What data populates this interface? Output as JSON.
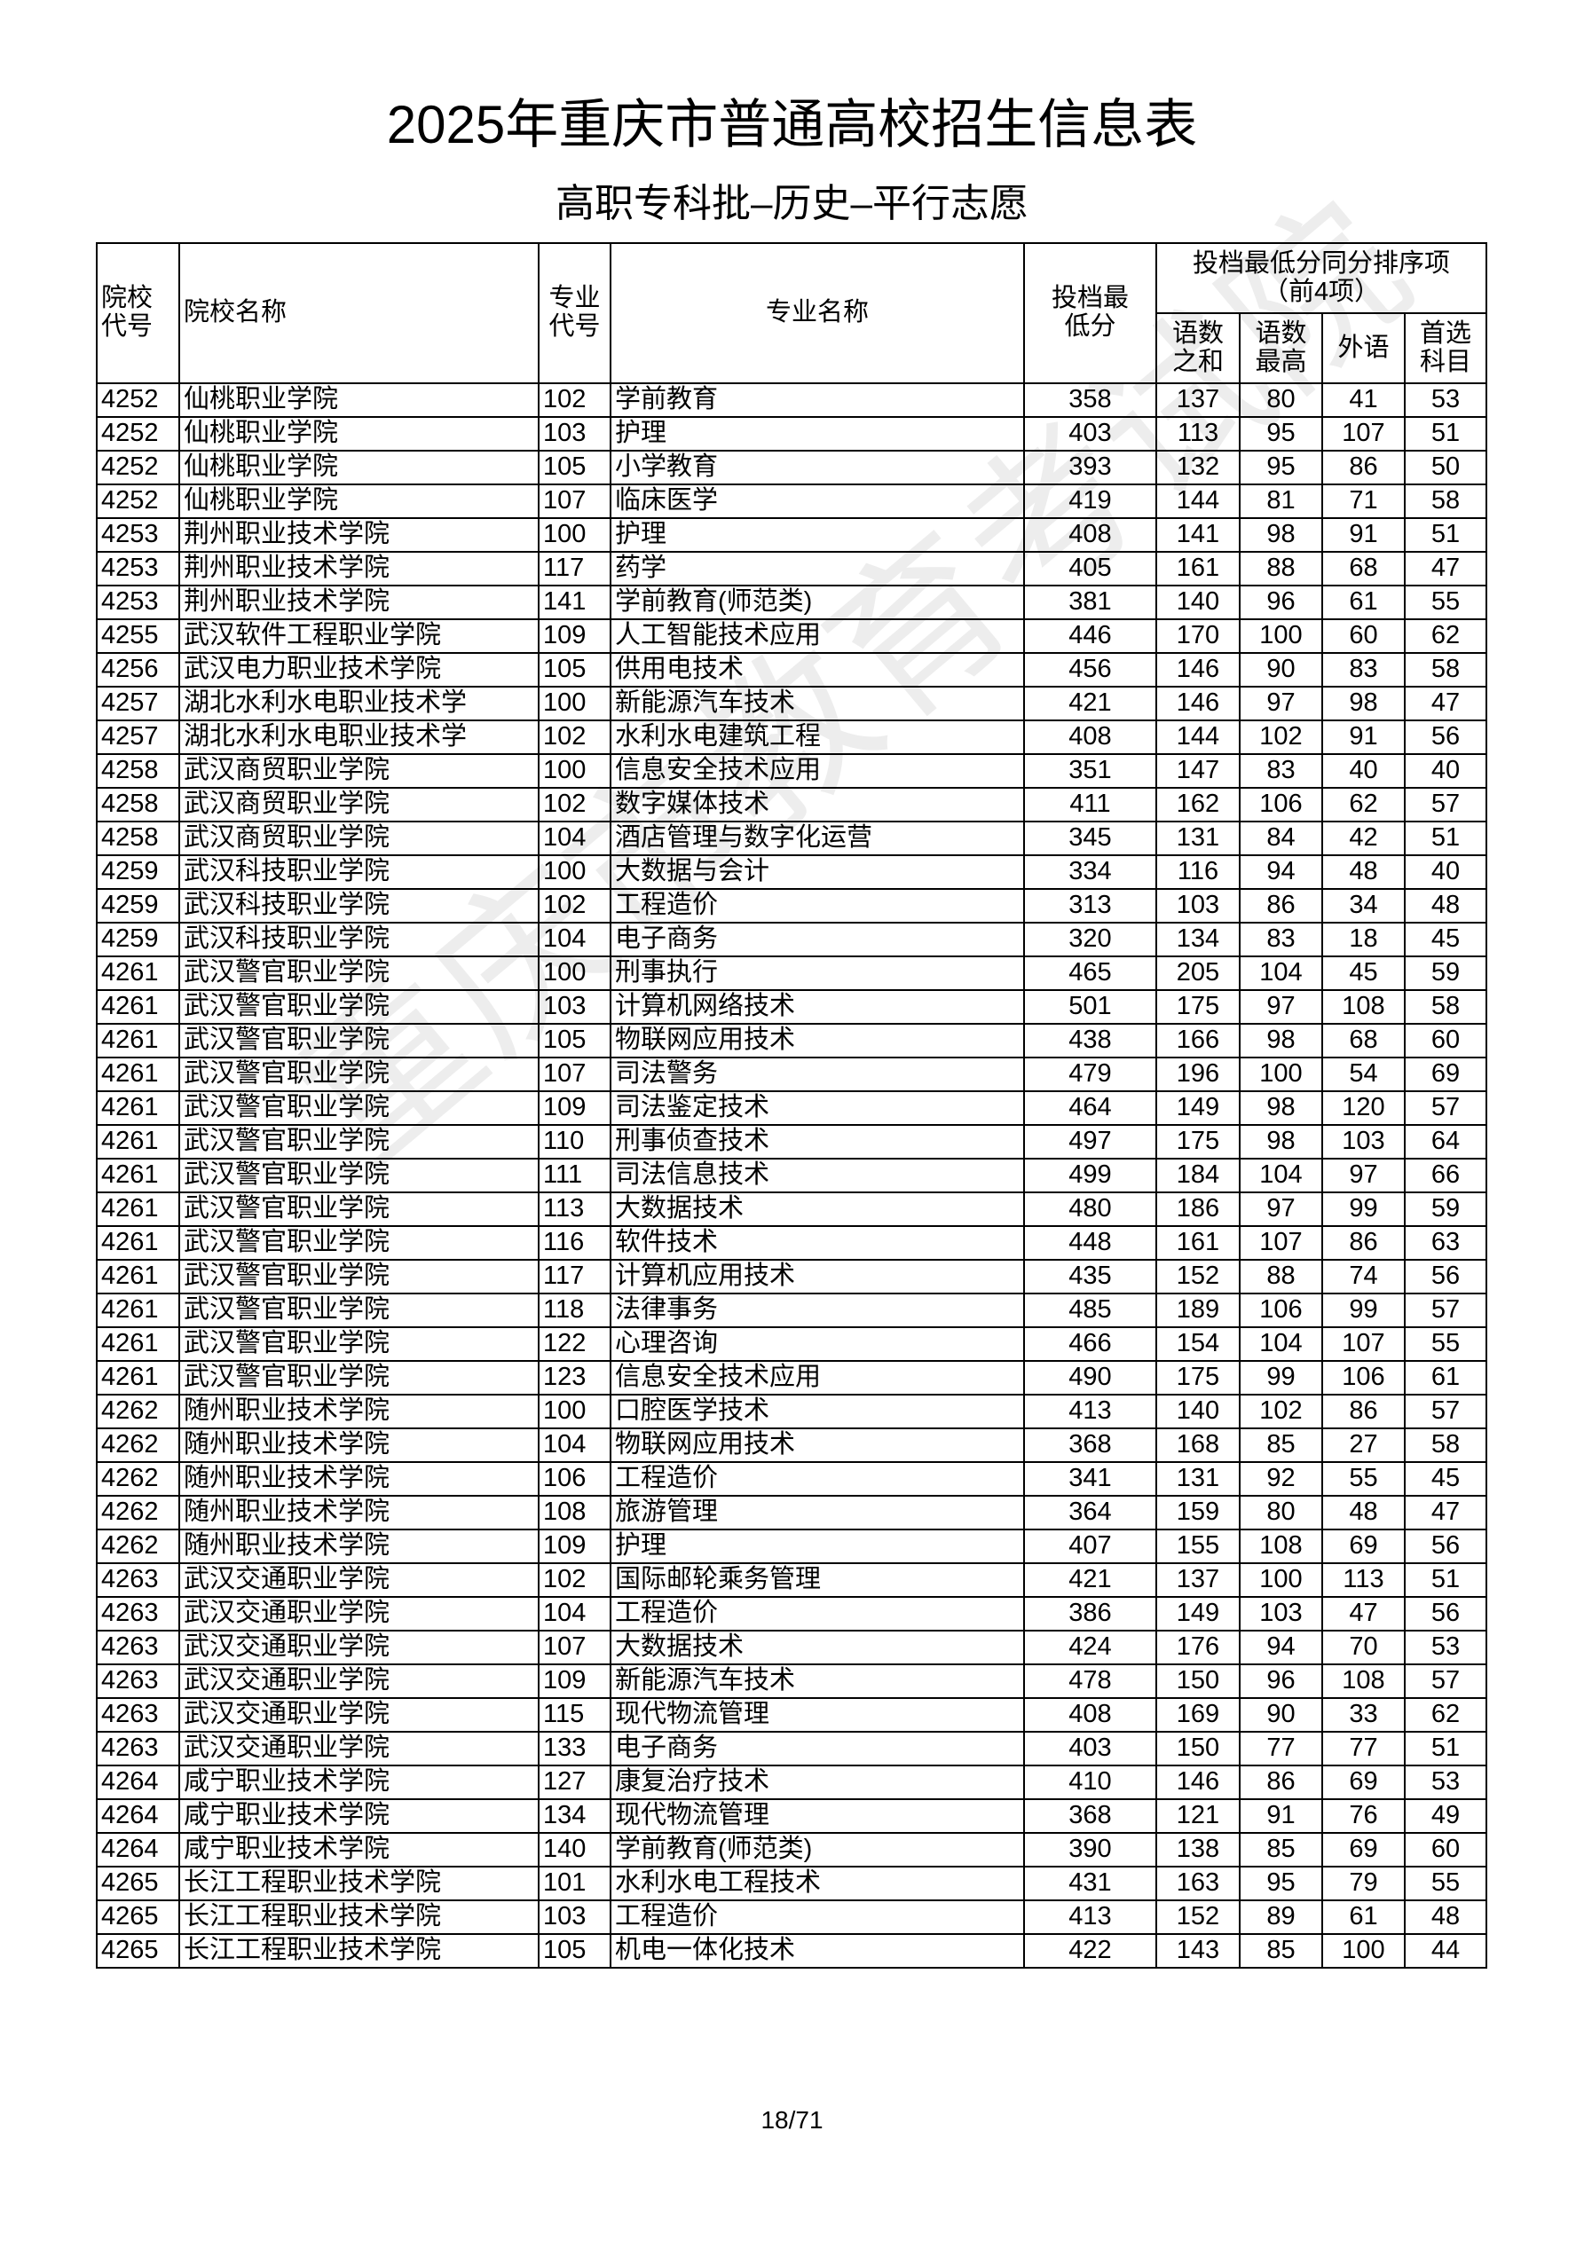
{
  "title": "2025年重庆市普通高校招生信息表",
  "subtitle": "高职专科批–历史–平行志愿",
  "watermark": "重庆市教育考试院",
  "table": {
    "headers": [
      "院校代号",
      "院校名称",
      "专业代号",
      "专业名称",
      "投档最低分"
    ],
    "group_header": "投档最低分同分排序项（前4项）",
    "sub_headers": [
      "语数之和",
      "语数最高",
      "外语",
      "首选科目"
    ],
    "rows": [
      [
        "4252",
        "仙桃职业学院",
        "102",
        "学前教育",
        358,
        137,
        80,
        41,
        53
      ],
      [
        "4252",
        "仙桃职业学院",
        "103",
        "护理",
        403,
        113,
        95,
        107,
        51
      ],
      [
        "4252",
        "仙桃职业学院",
        "105",
        "小学教育",
        393,
        132,
        95,
        86,
        50
      ],
      [
        "4252",
        "仙桃职业学院",
        "107",
        "临床医学",
        419,
        144,
        81,
        71,
        58
      ],
      [
        "4253",
        "荆州职业技术学院",
        "100",
        "护理",
        408,
        141,
        98,
        91,
        51
      ],
      [
        "4253",
        "荆州职业技术学院",
        "117",
        "药学",
        405,
        161,
        88,
        68,
        47
      ],
      [
        "4253",
        "荆州职业技术学院",
        "141",
        "学前教育(师范类)",
        381,
        140,
        96,
        61,
        55
      ],
      [
        "4255",
        "武汉软件工程职业学院",
        "109",
        "人工智能技术应用",
        446,
        170,
        100,
        60,
        62
      ],
      [
        "4256",
        "武汉电力职业技术学院",
        "105",
        "供用电技术",
        456,
        146,
        90,
        83,
        58
      ],
      [
        "4257",
        "湖北水利水电职业技术学",
        "100",
        "新能源汽车技术",
        421,
        146,
        97,
        98,
        47
      ],
      [
        "4257",
        "湖北水利水电职业技术学",
        "102",
        "水利水电建筑工程",
        408,
        144,
        102,
        91,
        56
      ],
      [
        "4258",
        "武汉商贸职业学院",
        "100",
        "信息安全技术应用",
        351,
        147,
        83,
        40,
        40
      ],
      [
        "4258",
        "武汉商贸职业学院",
        "102",
        "数字媒体技术",
        411,
        162,
        106,
        62,
        57
      ],
      [
        "4258",
        "武汉商贸职业学院",
        "104",
        "酒店管理与数字化运营",
        345,
        131,
        84,
        42,
        51
      ],
      [
        "4259",
        "武汉科技职业学院",
        "100",
        "大数据与会计",
        334,
        116,
        94,
        48,
        40
      ],
      [
        "4259",
        "武汉科技职业学院",
        "102",
        "工程造价",
        313,
        103,
        86,
        34,
        48
      ],
      [
        "4259",
        "武汉科技职业学院",
        "104",
        "电子商务",
        320,
        134,
        83,
        18,
        45
      ],
      [
        "4261",
        "武汉警官职业学院",
        "100",
        "刑事执行",
        465,
        205,
        104,
        45,
        59
      ],
      [
        "4261",
        "武汉警官职业学院",
        "103",
        "计算机网络技术",
        501,
        175,
        97,
        108,
        58
      ],
      [
        "4261",
        "武汉警官职业学院",
        "105",
        "物联网应用技术",
        438,
        166,
        98,
        68,
        60
      ],
      [
        "4261",
        "武汉警官职业学院",
        "107",
        "司法警务",
        479,
        196,
        100,
        54,
        69
      ],
      [
        "4261",
        "武汉警官职业学院",
        "109",
        "司法鉴定技术",
        464,
        149,
        98,
        120,
        57
      ],
      [
        "4261",
        "武汉警官职业学院",
        "110",
        "刑事侦查技术",
        497,
        175,
        98,
        103,
        64
      ],
      [
        "4261",
        "武汉警官职业学院",
        "111",
        "司法信息技术",
        499,
        184,
        104,
        97,
        66
      ],
      [
        "4261",
        "武汉警官职业学院",
        "113",
        "大数据技术",
        480,
        186,
        97,
        99,
        59
      ],
      [
        "4261",
        "武汉警官职业学院",
        "116",
        "软件技术",
        448,
        161,
        107,
        86,
        63
      ],
      [
        "4261",
        "武汉警官职业学院",
        "117",
        "计算机应用技术",
        435,
        152,
        88,
        74,
        56
      ],
      [
        "4261",
        "武汉警官职业学院",
        "118",
        "法律事务",
        485,
        189,
        106,
        99,
        57
      ],
      [
        "4261",
        "武汉警官职业学院",
        "122",
        "心理咨询",
        466,
        154,
        104,
        107,
        55
      ],
      [
        "4261",
        "武汉警官职业学院",
        "123",
        "信息安全技术应用",
        490,
        175,
        99,
        106,
        61
      ],
      [
        "4262",
        "随州职业技术学院",
        "100",
        "口腔医学技术",
        413,
        140,
        102,
        86,
        57
      ],
      [
        "4262",
        "随州职业技术学院",
        "104",
        "物联网应用技术",
        368,
        168,
        85,
        27,
        58
      ],
      [
        "4262",
        "随州职业技术学院",
        "106",
        "工程造价",
        341,
        131,
        92,
        55,
        45
      ],
      [
        "4262",
        "随州职业技术学院",
        "108",
        "旅游管理",
        364,
        159,
        80,
        48,
        47
      ],
      [
        "4262",
        "随州职业技术学院",
        "109",
        "护理",
        407,
        155,
        108,
        69,
        56
      ],
      [
        "4263",
        "武汉交通职业学院",
        "102",
        "国际邮轮乘务管理",
        421,
        137,
        100,
        113,
        51
      ],
      [
        "4263",
        "武汉交通职业学院",
        "104",
        "工程造价",
        386,
        149,
        103,
        47,
        56
      ],
      [
        "4263",
        "武汉交通职业学院",
        "107",
        "大数据技术",
        424,
        176,
        94,
        70,
        53
      ],
      [
        "4263",
        "武汉交通职业学院",
        "109",
        "新能源汽车技术",
        478,
        150,
        96,
        108,
        57
      ],
      [
        "4263",
        "武汉交通职业学院",
        "115",
        "现代物流管理",
        408,
        169,
        90,
        33,
        62
      ],
      [
        "4263",
        "武汉交通职业学院",
        "133",
        "电子商务",
        403,
        150,
        77,
        77,
        51
      ],
      [
        "4264",
        "咸宁职业技术学院",
        "127",
        "康复治疗技术",
        410,
        146,
        86,
        69,
        53
      ],
      [
        "4264",
        "咸宁职业技术学院",
        "134",
        "现代物流管理",
        368,
        121,
        91,
        76,
        49
      ],
      [
        "4264",
        "咸宁职业技术学院",
        "140",
        "学前教育(师范类)",
        390,
        138,
        85,
        69,
        60
      ],
      [
        "4265",
        "长江工程职业技术学院",
        "101",
        "水利水电工程技术",
        431,
        163,
        95,
        79,
        55
      ],
      [
        "4265",
        "长江工程职业技术学院",
        "103",
        "工程造价",
        413,
        152,
        89,
        61,
        48
      ],
      [
        "4265",
        "长江工程职业技术学院",
        "105",
        "机电一体化技术",
        422,
        143,
        85,
        100,
        44
      ]
    ]
  },
  "footer": {
    "page": "18/71"
  }
}
